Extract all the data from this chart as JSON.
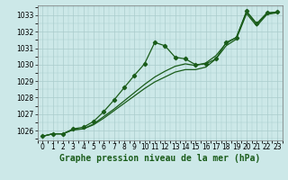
{
  "title": "Graphe pression niveau de la mer (hPa)",
  "background_color": "#cce8e8",
  "grid_color": "#aacccc",
  "line_color": "#1a5c1a",
  "xlim": [
    -0.5,
    23.5
  ],
  "ylim": [
    1025.4,
    1033.6
  ],
  "yticks": [
    1026,
    1027,
    1028,
    1029,
    1030,
    1031,
    1032,
    1033
  ],
  "xticks": [
    0,
    1,
    2,
    3,
    4,
    5,
    6,
    7,
    8,
    9,
    10,
    11,
    12,
    13,
    14,
    15,
    16,
    17,
    18,
    19,
    20,
    21,
    22,
    23
  ],
  "s1": [
    1025.65,
    1025.8,
    1025.8,
    1026.1,
    1026.2,
    1026.55,
    1027.15,
    1027.85,
    1028.6,
    1029.35,
    1030.05,
    1031.35,
    1031.15,
    1030.45,
    1030.35,
    1030.0,
    1030.05,
    1030.35,
    1031.35,
    1031.65,
    1033.25,
    1032.5,
    1033.15,
    1033.2
  ],
  "s2": [
    1025.65,
    1025.8,
    1025.8,
    1026.05,
    1026.1,
    1026.4,
    1026.85,
    1027.3,
    1027.8,
    1028.3,
    1028.8,
    1029.25,
    1029.6,
    1029.9,
    1030.05,
    1029.95,
    1030.1,
    1030.55,
    1031.3,
    1031.65,
    1033.2,
    1032.45,
    1033.1,
    1033.2
  ],
  "s3": [
    1025.65,
    1025.8,
    1025.8,
    1026.05,
    1026.1,
    1026.35,
    1026.75,
    1027.2,
    1027.65,
    1028.1,
    1028.55,
    1028.95,
    1029.25,
    1029.55,
    1029.7,
    1029.7,
    1029.85,
    1030.35,
    1031.15,
    1031.55,
    1033.1,
    1032.35,
    1033.05,
    1033.15
  ],
  "tick_fontsize": 5.5,
  "xlabel_fontsize": 7,
  "lw": 0.9,
  "marker_size": 2.2
}
